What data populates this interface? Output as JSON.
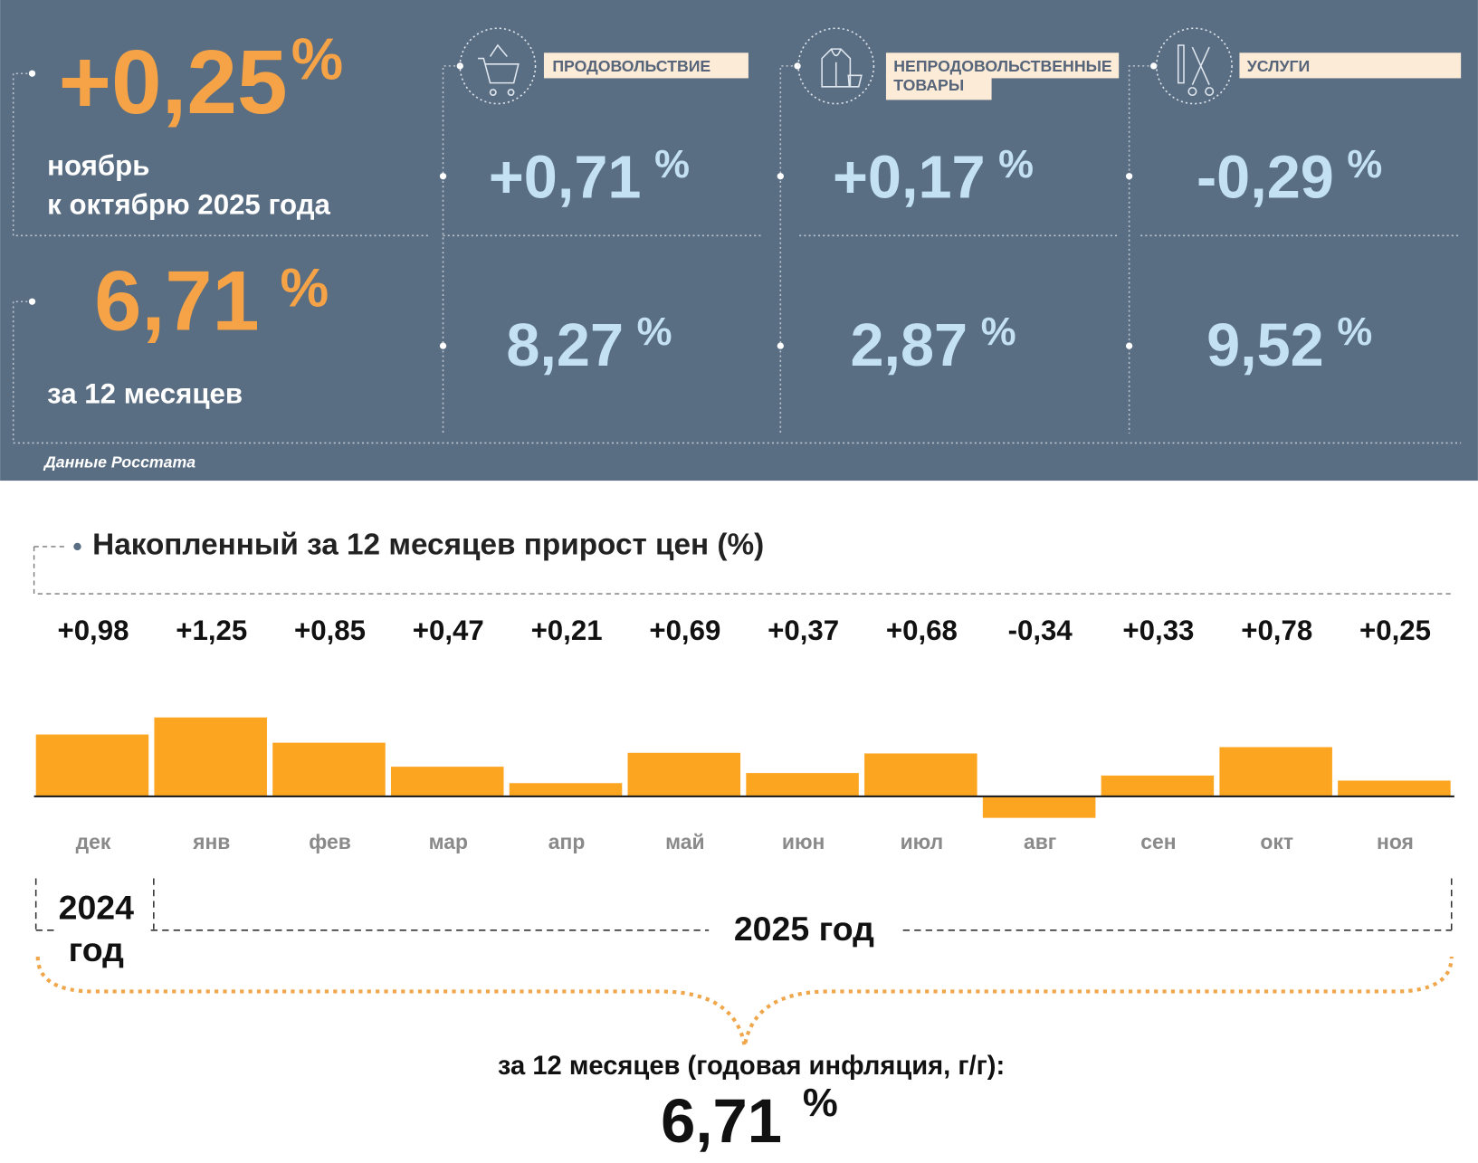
{
  "summary": {
    "month_change": "+0,25",
    "unit": "%",
    "month_caption": [
      "ноябрь",
      "к октябрю 2025 года"
    ],
    "annual_change": "6,71",
    "annual_caption": "за 12 месяцев",
    "source": "Данные Росстата"
  },
  "groups": [
    {
      "label": [
        "ПРОДОВОЛЬСТВИЕ"
      ],
      "month_change": "+0,71",
      "annual_change": "8,27"
    },
    {
      "label": [
        "НЕПРОДОВОЛЬСТВЕННЫЕ",
        "ТОВАРЫ"
      ],
      "month_change": "+0,17",
      "annual_change": "2,87"
    },
    {
      "label": [
        "УСЛУГИ"
      ],
      "month_change": "-0,29",
      "annual_change": "9,52"
    }
  ],
  "chart_data": {
    "type": "bar",
    "title": "Накопленный за 12 месяцев прирост цен (%)",
    "categories": [
      "дек",
      "янв",
      "фев",
      "мар",
      "апр",
      "май",
      "июн",
      "июл",
      "авг",
      "сен",
      "окт",
      "ноя"
    ],
    "values": [
      0.98,
      1.25,
      0.85,
      0.47,
      0.21,
      0.69,
      0.37,
      0.68,
      -0.34,
      0.33,
      0.78,
      0.25
    ],
    "value_labels": [
      "+0,98",
      "+1,25",
      "+0,85",
      "+0,47",
      "+0,21",
      "+0,69",
      "+0,37",
      "+0,68",
      "-0,34",
      "+0,33",
      "+0,78",
      "+0,25"
    ],
    "color": "#fca521",
    "year_2024": [
      "2024",
      "год"
    ],
    "year_2025": "2025 год"
  },
  "footer": {
    "caption": "за 12 месяцев (годовая инфляция, г/г):",
    "value": "6,71",
    "unit": "%"
  }
}
